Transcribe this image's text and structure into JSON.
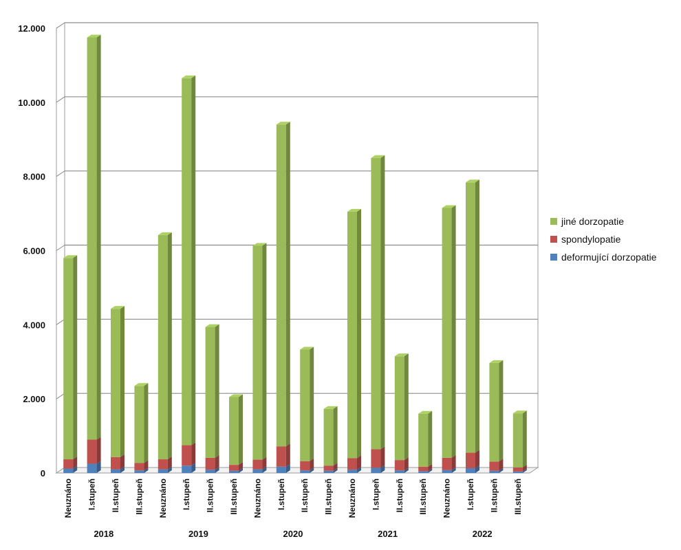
{
  "chart_data": {
    "type": "bar",
    "stacked": true,
    "three_d": true,
    "groups": [
      {
        "label": "2018",
        "categories": [
          "Neuznáno",
          "I.stupeň",
          "II.stupeň",
          "III.stupeň"
        ]
      },
      {
        "label": "2019",
        "categories": [
          "Neuznáno",
          "I.stupeň",
          "II.stupeň",
          "III.stupeň"
        ]
      },
      {
        "label": "2020",
        "categories": [
          "Neuznáno",
          "I.stupeň",
          "II.stupeň",
          "III.stupeň"
        ]
      },
      {
        "label": "2021",
        "categories": [
          "Neuznáno",
          "I.stupeň",
          "II.stupeň",
          "III.stupeň"
        ]
      },
      {
        "label": "2022",
        "categories": [
          "Neuznáno",
          "I.stupeň",
          "II.stupeň",
          "III.stupeň"
        ]
      }
    ],
    "series": [
      {
        "name": "deformující dorzopatie",
        "color": "#4f81bd",
        "values": [
          120,
          250,
          100,
          70,
          100,
          200,
          90,
          60,
          100,
          170,
          70,
          60,
          90,
          140,
          70,
          50,
          80,
          130,
          60,
          40
        ]
      },
      {
        "name": "spondylopatie",
        "color": "#c0504d",
        "values": [
          250,
          650,
          330,
          200,
          270,
          550,
          320,
          160,
          260,
          550,
          250,
          140,
          310,
          500,
          280,
          120,
          330,
          420,
          250,
          110
        ]
      },
      {
        "name": "jiné dorzopatie",
        "color": "#9bbb59",
        "values": [
          5430,
          10850,
          4000,
          2080,
          6050,
          9900,
          3530,
          1830,
          5770,
          8680,
          3010,
          1530,
          6650,
          7860,
          2800,
          1430,
          6740,
          7290,
          2660,
          1460
        ]
      }
    ],
    "ylim": [
      0,
      12000
    ],
    "yticks": [
      {
        "value": 0,
        "label": "0"
      },
      {
        "value": 2000,
        "label": "2.000"
      },
      {
        "value": 4000,
        "label": "4.000"
      },
      {
        "value": 6000,
        "label": "6.000"
      },
      {
        "value": 8000,
        "label": "8.000"
      },
      {
        "value": 10000,
        "label": "10.000"
      },
      {
        "value": 12000,
        "label": "12.000"
      }
    ],
    "grid": true,
    "legend": {
      "position": "right",
      "order": [
        "jiné dorzopatie",
        "spondylopatie",
        "deformující dorzopatie"
      ]
    }
  }
}
